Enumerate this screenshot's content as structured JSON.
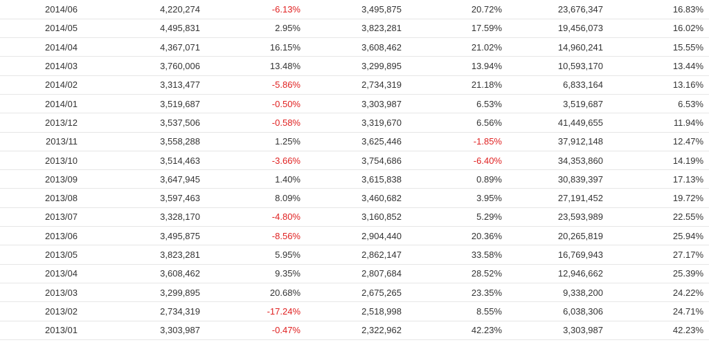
{
  "colors": {
    "text": "#333333",
    "negative": "#e02020",
    "border": "#e6e6e6"
  },
  "rows": [
    [
      "2014/06",
      "4,220,274",
      "-6.13%",
      "3,495,875",
      "20.72%",
      "23,676,347",
      "16.83%"
    ],
    [
      "2014/05",
      "4,495,831",
      "2.95%",
      "3,823,281",
      "17.59%",
      "19,456,073",
      "16.02%"
    ],
    [
      "2014/04",
      "4,367,071",
      "16.15%",
      "3,608,462",
      "21.02%",
      "14,960,241",
      "15.55%"
    ],
    [
      "2014/03",
      "3,760,006",
      "13.48%",
      "3,299,895",
      "13.94%",
      "10,593,170",
      "13.44%"
    ],
    [
      "2014/02",
      "3,313,477",
      "-5.86%",
      "2,734,319",
      "21.18%",
      "6,833,164",
      "13.16%"
    ],
    [
      "2014/01",
      "3,519,687",
      "-0.50%",
      "3,303,987",
      "6.53%",
      "3,519,687",
      "6.53%"
    ],
    [
      "2013/12",
      "3,537,506",
      "-0.58%",
      "3,319,670",
      "6.56%",
      "41,449,655",
      "11.94%"
    ],
    [
      "2013/11",
      "3,558,288",
      "1.25%",
      "3,625,446",
      "-1.85%",
      "37,912,148",
      "12.47%"
    ],
    [
      "2013/10",
      "3,514,463",
      "-3.66%",
      "3,754,686",
      "-6.40%",
      "34,353,860",
      "14.19%"
    ],
    [
      "2013/09",
      "3,647,945",
      "1.40%",
      "3,615,838",
      "0.89%",
      "30,839,397",
      "17.13%"
    ],
    [
      "2013/08",
      "3,597,463",
      "8.09%",
      "3,460,682",
      "3.95%",
      "27,191,452",
      "19.72%"
    ],
    [
      "2013/07",
      "3,328,170",
      "-4.80%",
      "3,160,852",
      "5.29%",
      "23,593,989",
      "22.55%"
    ],
    [
      "2013/06",
      "3,495,875",
      "-8.56%",
      "2,904,440",
      "20.36%",
      "20,265,819",
      "25.94%"
    ],
    [
      "2013/05",
      "3,823,281",
      "5.95%",
      "2,862,147",
      "33.58%",
      "16,769,943",
      "27.17%"
    ],
    [
      "2013/04",
      "3,608,462",
      "9.35%",
      "2,807,684",
      "28.52%",
      "12,946,662",
      "25.39%"
    ],
    [
      "2013/03",
      "3,299,895",
      "20.68%",
      "2,675,265",
      "23.35%",
      "9,338,200",
      "24.22%"
    ],
    [
      "2013/02",
      "2,734,319",
      "-17.24%",
      "2,518,998",
      "8.55%",
      "6,038,306",
      "24.71%"
    ],
    [
      "2013/01",
      "3,303,987",
      "-0.47%",
      "2,322,962",
      "42.23%",
      "3,303,987",
      "42.23%"
    ]
  ]
}
